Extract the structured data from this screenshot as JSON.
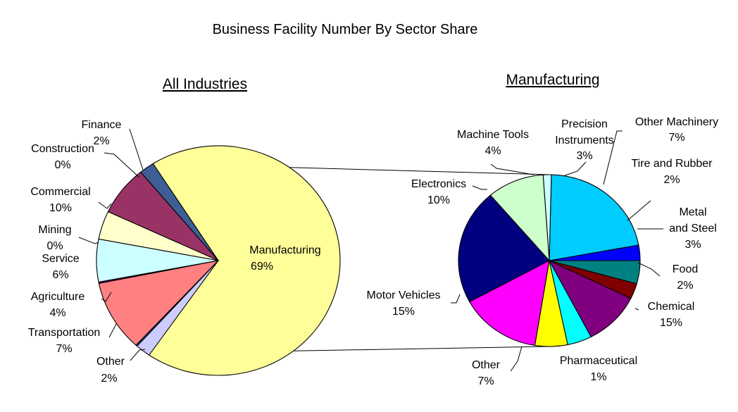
{
  "title": "Business Facility Number By Sector Share",
  "colors": {
    "outline": "#000000",
    "connector": "#000000",
    "background": "#ffffff"
  },
  "chart_data": [
    {
      "type": "pie",
      "title": "All Industries",
      "unit": "%",
      "slices": [
        {
          "label": "Manufacturing",
          "value": 69,
          "color": "#ffff99"
        },
        {
          "label": "Other",
          "value": 2,
          "color": "#3d5f95"
        },
        {
          "label": "Transportation",
          "value": 7,
          "color": "#993366"
        },
        {
          "label": "Agriculture",
          "value": 4,
          "color": "#ffffcc"
        },
        {
          "label": "Service",
          "value": 6,
          "color": "#ccffff"
        },
        {
          "label": "Mining",
          "value": 0,
          "color": "#660066"
        },
        {
          "label": "Commercial",
          "value": 10,
          "color": "#ff8080"
        },
        {
          "label": "Construction",
          "value": 0,
          "color": "#0066cc"
        },
        {
          "label": "Finance",
          "value": 2,
          "color": "#ccccff"
        }
      ]
    },
    {
      "type": "pie",
      "title": "Manufacturing",
      "unit": "%",
      "slices": [
        {
          "label": "Food",
          "value": 2,
          "color": "#0000ff"
        },
        {
          "label": "Chemical",
          "value": 15,
          "color": "#00ccff"
        },
        {
          "label": "Pharmaceutical",
          "value": 1,
          "color": "#ccffff"
        },
        {
          "label": "Other",
          "value": 7,
          "color": "#ccffcc"
        },
        {
          "label": "Motor Vehicles",
          "value": 15,
          "color": "#000080"
        },
        {
          "label": "Electronics",
          "value": 10,
          "color": "#ff00ff"
        },
        {
          "label": "Machine Tools",
          "value": 4,
          "color": "#ffff00"
        },
        {
          "label": "Precision Instruments",
          "value": 3,
          "color": "#00ffff"
        },
        {
          "label": "Other Machinery",
          "value": 7,
          "color": "#800080"
        },
        {
          "label": "Tire and Rubber",
          "value": 2,
          "color": "#800000"
        },
        {
          "label": "Metal and Steel",
          "value": 3,
          "color": "#008080"
        }
      ]
    }
  ]
}
